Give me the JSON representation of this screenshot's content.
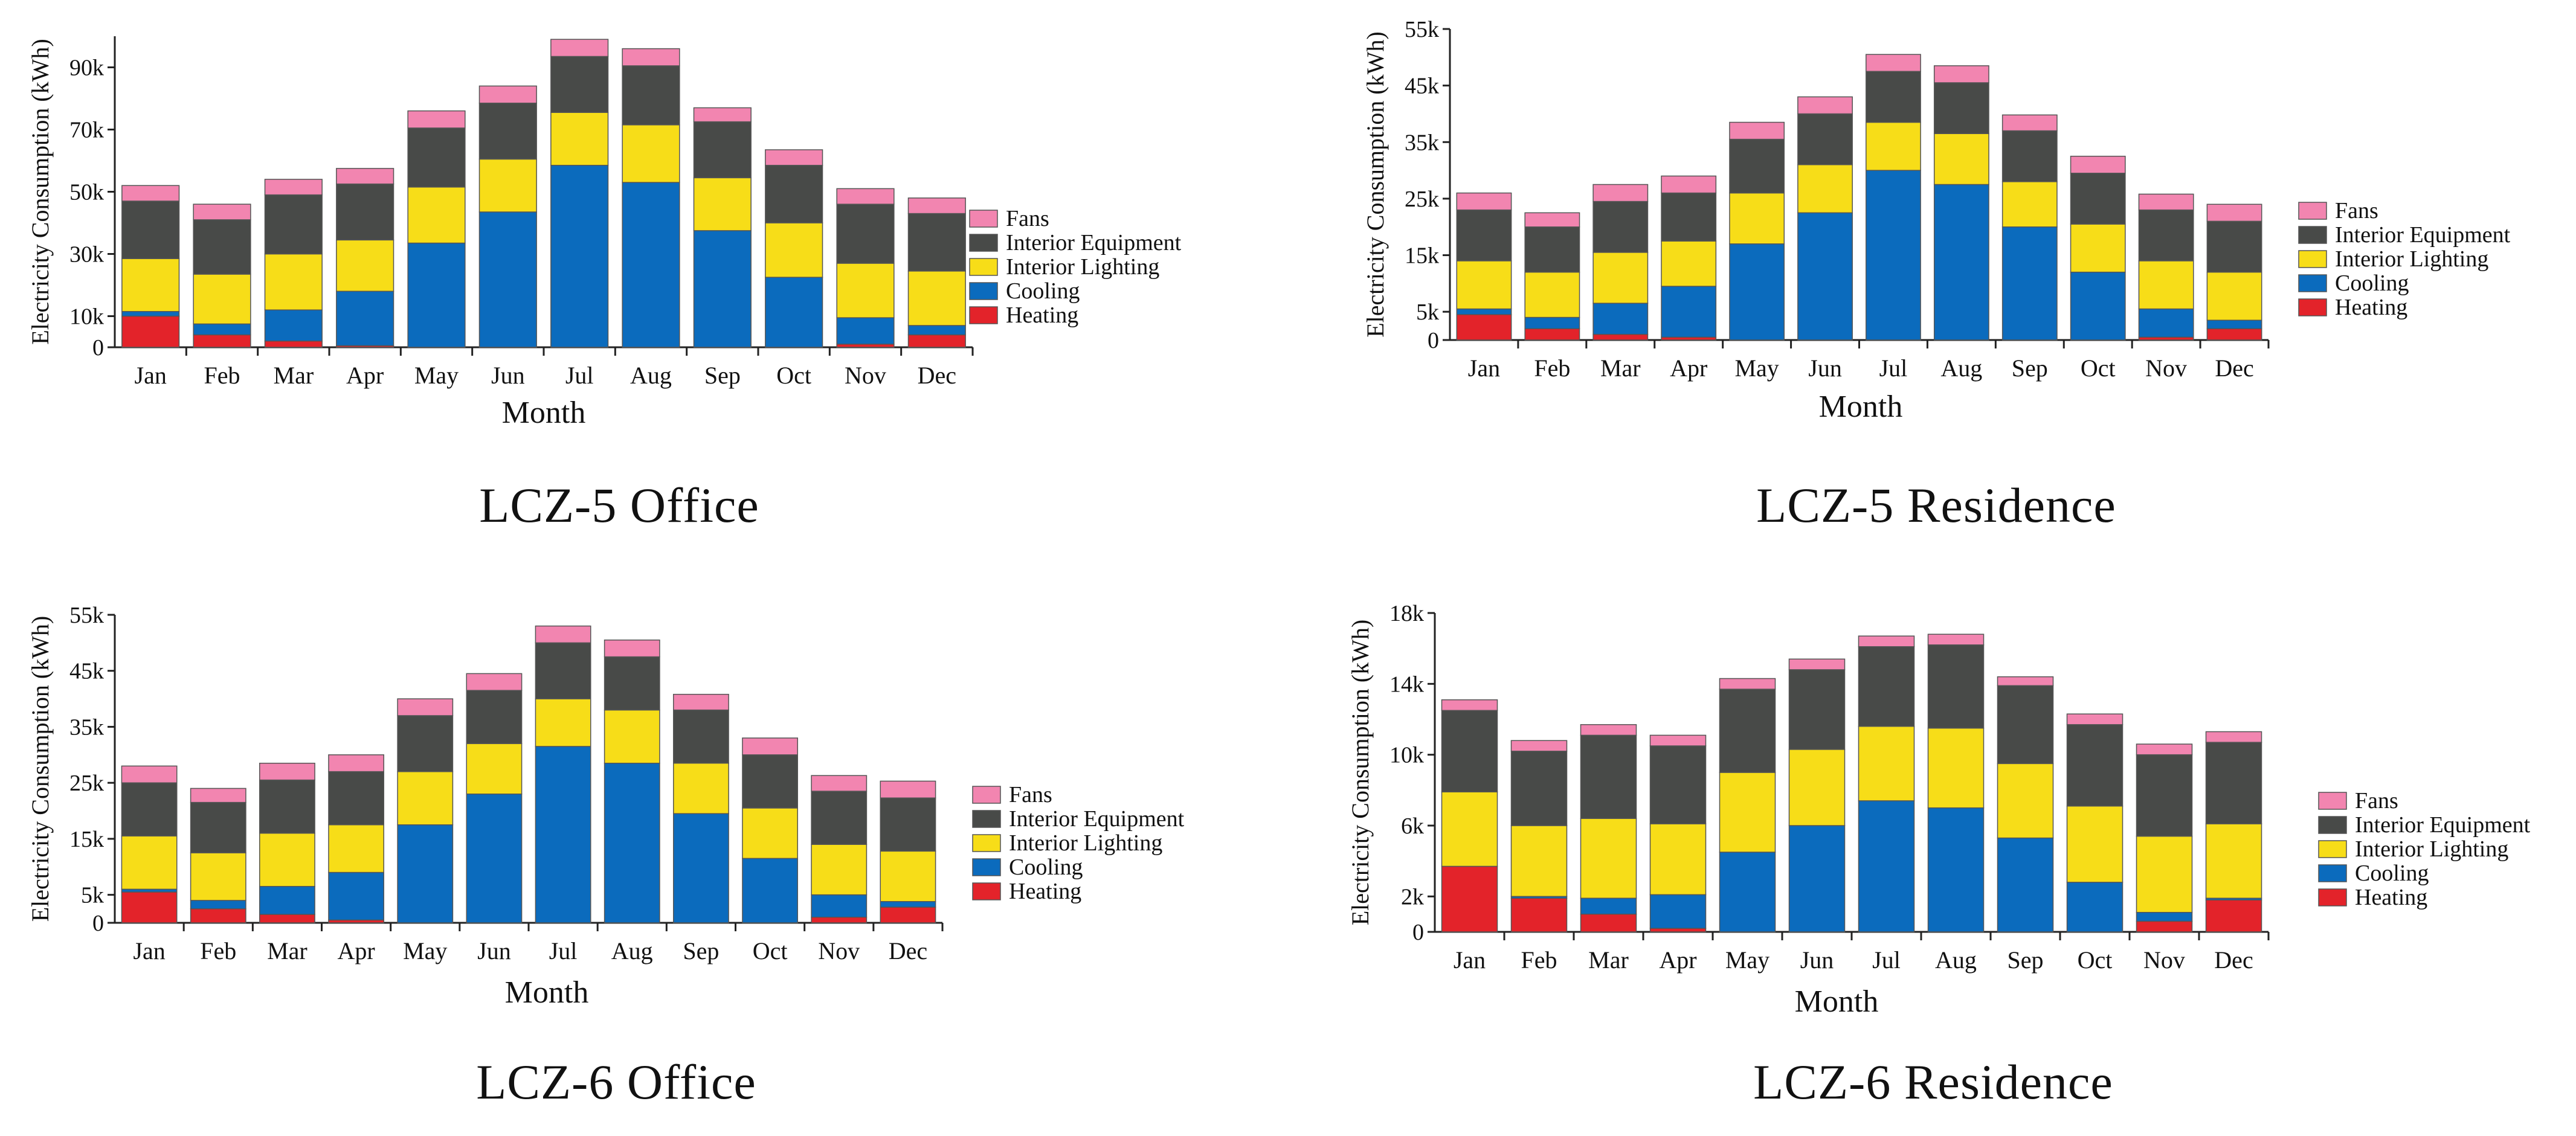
{
  "colors": {
    "Heating": "#e3232a",
    "Cooling": "#0b6bbd",
    "Interior Lighting": "#f7dd18",
    "Interior Equipment": "#484a48",
    "Fans": "#f285b0"
  },
  "panel_titles": [
    "LCZ-5 Office",
    "LCZ-5 Residence",
    "LCZ-6 Office",
    "LCZ-6 Residence"
  ],
  "chart_data": [
    {
      "type": "bar",
      "stacked": true,
      "title": "LCZ-5 Office",
      "xlabel": "Month",
      "ylabel": "Electricity Consumption (kWh)",
      "categories": [
        "Jan",
        "Feb",
        "Mar",
        "Apr",
        "May",
        "Jun",
        "Jul",
        "Aug",
        "Sep",
        "Oct",
        "Nov",
        "Dec"
      ],
      "ylim": [
        0,
        100000
      ],
      "yticks": [
        0,
        10000,
        30000,
        50000,
        70000,
        90000
      ],
      "ytick_labels": [
        "0",
        "10k",
        "30k",
        "50k",
        "70k",
        "90k"
      ],
      "legend": [
        "Fans",
        "Interior Equipment",
        "Interior Lighting",
        "Cooling",
        "Heating"
      ],
      "series": [
        {
          "name": "Heating",
          "values": [
            10000,
            4000,
            2000,
            500,
            0,
            0,
            0,
            0,
            0,
            0,
            1000,
            4000
          ]
        },
        {
          "name": "Cooling",
          "values": [
            1500,
            3500,
            10000,
            17500,
            33500,
            43500,
            58500,
            53000,
            37500,
            22500,
            8500,
            3000
          ]
        },
        {
          "name": "Interior Lighting",
          "values": [
            17000,
            16000,
            18000,
            16500,
            18000,
            17000,
            17000,
            18500,
            17000,
            17500,
            17500,
            17500
          ]
        },
        {
          "name": "Interior Equipment",
          "values": [
            18500,
            17500,
            19000,
            18000,
            19000,
            18000,
            18000,
            19000,
            18000,
            18500,
            19000,
            18500
          ]
        },
        {
          "name": "Fans",
          "values": [
            5000,
            5000,
            5000,
            5000,
            5500,
            5500,
            5500,
            5500,
            4500,
            5000,
            5000,
            5000
          ]
        }
      ]
    },
    {
      "type": "bar",
      "stacked": true,
      "title": "LCZ-5 Residence",
      "xlabel": "Month",
      "ylabel": "Electricity Consumption (kWh)",
      "categories": [
        "Jan",
        "Feb",
        "Mar",
        "Apr",
        "May",
        "Jun",
        "Jul",
        "Aug",
        "Sep",
        "Oct",
        "Nov",
        "Dec"
      ],
      "ylim": [
        0,
        55000
      ],
      "yticks": [
        0,
        5000,
        15000,
        25000,
        35000,
        45000,
        55000
      ],
      "ytick_labels": [
        "0",
        "5k",
        "15k",
        "25k",
        "35k",
        "45k",
        "55k"
      ],
      "legend": [
        "Fans",
        "Interior Equipment",
        "Interior Lighting",
        "Cooling",
        "Heating"
      ],
      "series": [
        {
          "name": "Heating",
          "values": [
            4500,
            2000,
            1000,
            500,
            0,
            0,
            0,
            0,
            0,
            0,
            500,
            2000
          ]
        },
        {
          "name": "Cooling",
          "values": [
            1000,
            2000,
            5500,
            9000,
            17000,
            22500,
            30000,
            27500,
            20000,
            12000,
            5000,
            1500
          ]
        },
        {
          "name": "Interior Lighting",
          "values": [
            8500,
            8000,
            9000,
            8000,
            9000,
            8500,
            8500,
            9000,
            8000,
            8500,
            8500,
            8500
          ]
        },
        {
          "name": "Interior Equipment",
          "values": [
            9000,
            8000,
            9000,
            8500,
            9500,
            9000,
            9000,
            9000,
            9000,
            9000,
            9000,
            9000
          ]
        },
        {
          "name": "Fans",
          "values": [
            3000,
            2500,
            3000,
            3000,
            3000,
            3000,
            3000,
            3000,
            2800,
            3000,
            2800,
            3000
          ]
        }
      ]
    },
    {
      "type": "bar",
      "stacked": true,
      "title": "LCZ-6 Office",
      "xlabel": "Month",
      "ylabel": "Electricity Consumption (kWh)",
      "categories": [
        "Jan",
        "Feb",
        "Mar",
        "Apr",
        "May",
        "Jun",
        "Jul",
        "Aug",
        "Sep",
        "Oct",
        "Nov",
        "Dec"
      ],
      "ylim": [
        0,
        55000
      ],
      "yticks": [
        0,
        5000,
        15000,
        25000,
        35000,
        45000,
        55000
      ],
      "ytick_labels": [
        "0",
        "5k",
        "15k",
        "25k",
        "35k",
        "45k",
        "55k"
      ],
      "legend": [
        "Fans",
        "Interior Equipment",
        "Interior Lighting",
        "Cooling",
        "Heating"
      ],
      "series": [
        {
          "name": "Heating",
          "values": [
            5500,
            2500,
            1500,
            500,
            0,
            0,
            0,
            0,
            0,
            0,
            1000,
            2800
          ]
        },
        {
          "name": "Cooling",
          "values": [
            500,
            1500,
            5000,
            8500,
            17500,
            23000,
            31500,
            28500,
            19500,
            11500,
            4000,
            1000
          ]
        },
        {
          "name": "Interior Lighting",
          "values": [
            9500,
            8500,
            9500,
            8500,
            9500,
            9000,
            8500,
            9500,
            9000,
            9000,
            9000,
            9000
          ]
        },
        {
          "name": "Interior Equipment",
          "values": [
            9500,
            9000,
            9500,
            9500,
            10000,
            9500,
            10000,
            9500,
            9500,
            9500,
            9500,
            9500
          ]
        },
        {
          "name": "Fans",
          "values": [
            3000,
            2500,
            3000,
            3000,
            3000,
            3000,
            3000,
            3000,
            2800,
            3000,
            2800,
            3000
          ]
        }
      ]
    },
    {
      "type": "bar",
      "stacked": true,
      "title": "LCZ-6 Residence",
      "xlabel": "Month",
      "ylabel": "Electricity Consumption (kWh)",
      "categories": [
        "Jan",
        "Feb",
        "Mar",
        "Apr",
        "May",
        "Jun",
        "Jul",
        "Aug",
        "Sep",
        "Oct",
        "Nov",
        "Dec"
      ],
      "ylim": [
        0,
        18000
      ],
      "yticks": [
        0,
        2000,
        6000,
        10000,
        14000,
        18000
      ],
      "ytick_labels": [
        "0",
        "2k",
        "6k",
        "10k",
        "14k",
        "18k"
      ],
      "legend": [
        "Fans",
        "Interior Equipment",
        "Interior Lighting",
        "Cooling",
        "Heating"
      ],
      "series": [
        {
          "name": "Heating",
          "values": [
            3700,
            1900,
            1000,
            200,
            0,
            0,
            0,
            0,
            0,
            0,
            600,
            1800
          ]
        },
        {
          "name": "Cooling",
          "values": [
            0,
            100,
            900,
            1900,
            4500,
            6000,
            7400,
            7000,
            5300,
            2800,
            500,
            100
          ]
        },
        {
          "name": "Interior Lighting",
          "values": [
            4200,
            4000,
            4500,
            4000,
            4500,
            4300,
            4200,
            4500,
            4200,
            4300,
            4300,
            4200
          ]
        },
        {
          "name": "Interior Equipment",
          "values": [
            4600,
            4200,
            4700,
            4400,
            4700,
            4500,
            4500,
            4700,
            4400,
            4600,
            4600,
            4600
          ]
        },
        {
          "name": "Fans",
          "values": [
            600,
            600,
            600,
            600,
            600,
            600,
            600,
            600,
            500,
            600,
            600,
            600
          ]
        }
      ]
    }
  ]
}
